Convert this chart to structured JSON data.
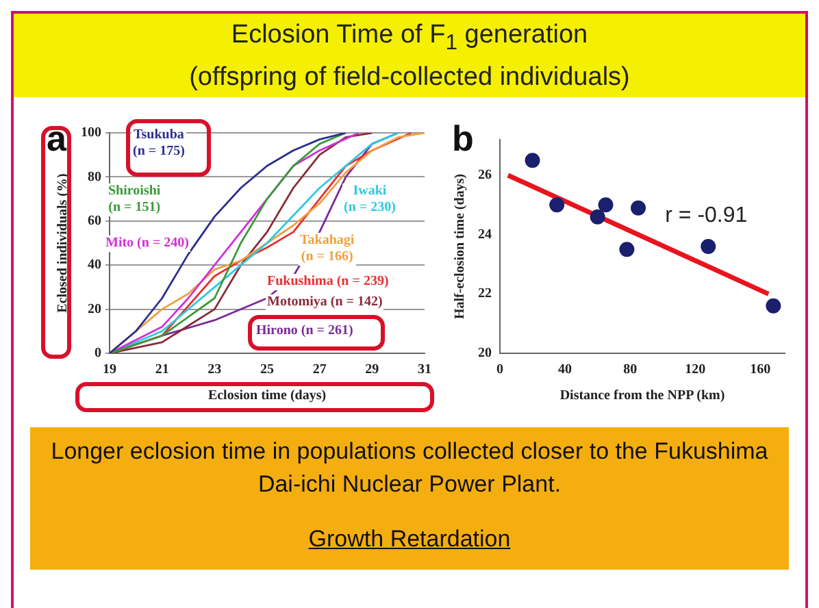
{
  "chart_data": [
    {
      "type": "line",
      "title": "Eclosion Time of F$_{1}$ generation\n(offspring of field-collected individuals)",
      "xlabel": "Eclosion time (days)",
      "ylabel": "Eclosed individuals (%)",
      "xlim": [
        19,
        31
      ],
      "xticks": [
        19,
        21,
        23,
        25,
        27,
        29,
        31
      ],
      "ylim": [
        0,
        100
      ],
      "yticks": [
        0,
        20,
        40,
        60,
        80,
        100
      ],
      "grid": "y",
      "marker": "none",
      "legend": false,
      "annotations": [
        "a",
        "Longer eclosion time in populations collected closer to the Fukushima Dai-ichi Nuclear Power Plant.",
        "Growth Retardation"
      ],
      "series": [
        {
          "name": "Tsukuba (n = 175)",
          "color": "#2b2f8f",
          "x": [
            19,
            20,
            21,
            22,
            23,
            24,
            25,
            26,
            27,
            28
          ],
          "values": [
            0,
            10,
            25,
            45,
            62,
            75,
            85,
            92,
            97,
            100
          ]
        },
        {
          "name": "Shiroishi (n = 151)",
          "color": "#3a9a3a",
          "x": [
            19,
            21,
            23,
            24,
            25,
            26,
            27,
            28
          ],
          "values": [
            0,
            8,
            25,
            50,
            70,
            85,
            95,
            100
          ]
        },
        {
          "name": "Mito (n = 240)",
          "color": "#d030d8",
          "x": [
            19,
            21,
            22,
            23,
            24,
            25,
            26,
            27,
            28.5
          ],
          "values": [
            0,
            12,
            25,
            40,
            55,
            70,
            85,
            92,
            100
          ]
        },
        {
          "name": "Iwaki (n = 230)",
          "color": "#30c8e0",
          "x": [
            19,
            21,
            23,
            25,
            27,
            28,
            29,
            30
          ],
          "values": [
            0,
            10,
            30,
            50,
            75,
            85,
            95,
            100
          ]
        },
        {
          "name": "Takahagi (n = 166)",
          "color": "#f0a040",
          "x": [
            19,
            21,
            22,
            23,
            24,
            25,
            26,
            27,
            28,
            29,
            30,
            31
          ],
          "values": [
            0,
            20,
            27,
            38,
            42,
            50,
            58,
            68,
            82,
            92,
            98,
            100
          ]
        },
        {
          "name": "Fukushima (n = 239)",
          "color": "#e83030",
          "x": [
            19,
            21,
            23,
            24,
            25,
            26,
            27,
            28,
            29,
            30.5
          ],
          "values": [
            0,
            8,
            35,
            42,
            48,
            55,
            70,
            85,
            92,
            100
          ]
        },
        {
          "name": "Motomiya (n = 142)",
          "color": "#8a2a3a",
          "x": [
            19,
            21,
            23,
            24,
            25,
            26,
            27,
            28,
            29
          ],
          "values": [
            0,
            5,
            20,
            40,
            55,
            75,
            90,
            98,
            100
          ]
        },
        {
          "name": "Hirono (n = 261)",
          "color": "#7a2a9a",
          "x": [
            19,
            21,
            23,
            25,
            26,
            27,
            28,
            29,
            30
          ],
          "values": [
            0,
            8,
            15,
            25,
            35,
            55,
            80,
            95,
            100
          ]
        }
      ]
    },
    {
      "type": "scatter",
      "title": "b",
      "xlabel": "Distance from the NPP (km)",
      "ylabel": "Half-eclosion time (days)",
      "xlim": [
        0,
        175
      ],
      "xticks": [
        0,
        40,
        80,
        120,
        160
      ],
      "ylim": [
        20,
        27.2
      ],
      "yticks": [
        20,
        22,
        24,
        26
      ],
      "grid": false,
      "legend": false,
      "annotations": [
        "r = -0.91"
      ],
      "series": [
        {
          "type": "scatter",
          "marker": "circle",
          "color": "#1a1f6e",
          "x": [
            20,
            35,
            60,
            65,
            78,
            85,
            128,
            168
          ],
          "values": [
            26.5,
            25.0,
            24.6,
            25.0,
            23.5,
            24.9,
            23.6,
            21.6
          ]
        },
        {
          "type": "line",
          "marker": "none",
          "color": "#e8141e",
          "x": [
            5,
            165
          ],
          "values": [
            26.0,
            22.0
          ]
        }
      ]
    }
  ]
}
